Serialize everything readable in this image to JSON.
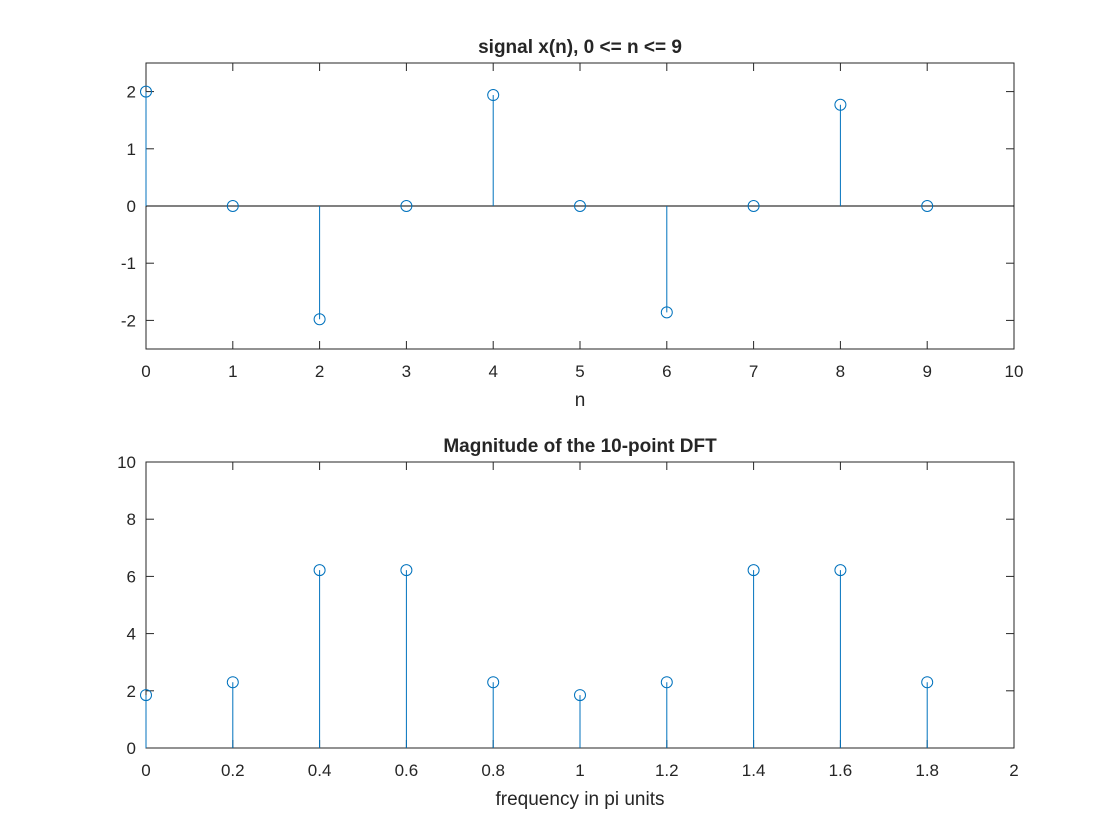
{
  "chart_data": [
    {
      "type": "stem",
      "title": "signal x(n), 0 <= n <= 9",
      "xlabel": "n",
      "ylabel": "",
      "xlim": [
        0,
        10
      ],
      "ylim": [
        -2.5,
        2.5
      ],
      "xticks": [
        0,
        1,
        2,
        3,
        4,
        5,
        6,
        7,
        8,
        9,
        10
      ],
      "xtick_labels": [
        "0",
        "1",
        "2",
        "3",
        "4",
        "5",
        "6",
        "7",
        "8",
        "9",
        "10"
      ],
      "yticks": [
        2,
        1,
        0,
        -1,
        -2
      ],
      "ytick_labels": [
        "2",
        "1",
        "0",
        "-1",
        "-2"
      ],
      "baseline": true,
      "grid": false,
      "series": [
        {
          "x": [
            0,
            1,
            2,
            3,
            4,
            5,
            6,
            7,
            8,
            9
          ],
          "y": [
            2.0,
            0,
            -1.98,
            0,
            1.94,
            0,
            -1.86,
            0,
            1.77,
            0
          ],
          "color": "#0072BD"
        }
      ]
    },
    {
      "type": "stem",
      "title": "Magnitude of the 10-point DFT",
      "xlabel": "frequency in pi units",
      "ylabel": "",
      "xlim": [
        0,
        2
      ],
      "ylim": [
        0,
        10
      ],
      "xticks": [
        0,
        0.2,
        0.4,
        0.6,
        0.8,
        1,
        1.2,
        1.4,
        1.6,
        1.8,
        2
      ],
      "xtick_labels": [
        "0",
        "0.2",
        "0.4",
        "0.6",
        "0.8",
        "1",
        "1.2",
        "1.4",
        "1.6",
        "1.8",
        "2"
      ],
      "yticks": [
        0,
        2,
        4,
        6,
        8,
        10
      ],
      "ytick_labels": [
        "0",
        "2",
        "4",
        "6",
        "8",
        "10"
      ],
      "baseline": false,
      "grid": false,
      "series": [
        {
          "x": [
            0,
            0.2,
            0.4,
            0.6,
            0.8,
            1.0,
            1.2,
            1.4,
            1.6,
            1.8
          ],
          "y": [
            1.85,
            2.3,
            6.22,
            6.22,
            2.3,
            1.85,
            2.3,
            6.22,
            6.22,
            2.3
          ],
          "color": "#0072BD"
        }
      ]
    }
  ]
}
